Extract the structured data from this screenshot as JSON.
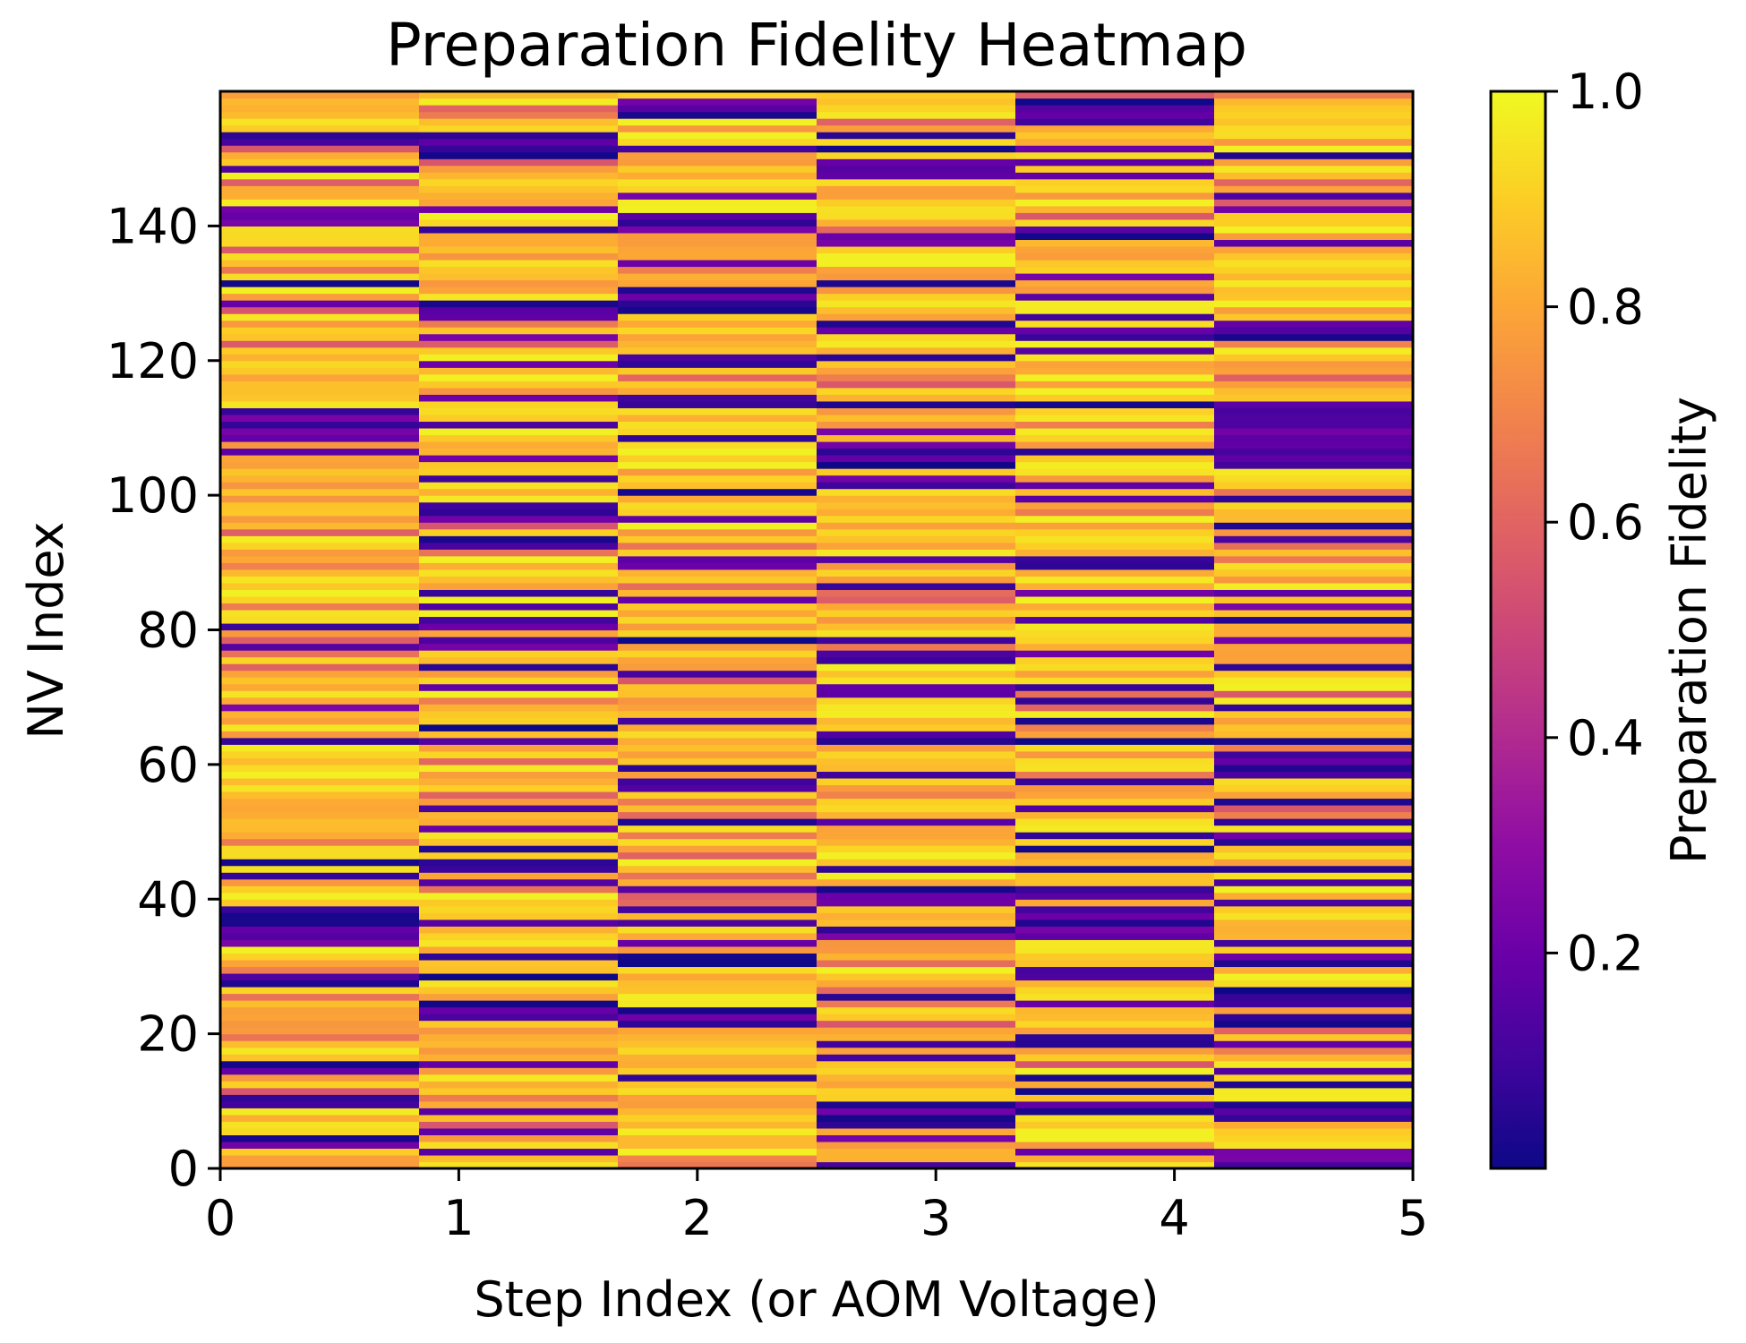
{
  "chart_data": {
    "type": "heatmap",
    "title": "Preparation Fidelity Heatmap",
    "xlabel": "Step Index (or AOM Voltage)",
    "ylabel": "NV Index",
    "colorbar_label": "Preparation Fidelity",
    "colormap": "plasma",
    "color_range": [
      0.0,
      1.0
    ],
    "xlim": [
      0,
      5
    ],
    "ylim": [
      0,
      160
    ],
    "x_ticks": [
      "0",
      "1",
      "2",
      "3",
      "4",
      "5"
    ],
    "y_ticks": [
      "0",
      "20",
      "40",
      "60",
      "80",
      "100",
      "120",
      "140"
    ],
    "colorbar_ticks": [
      "0.2",
      "0.4",
      "0.6",
      "0.8",
      "1.0"
    ],
    "n_steps": 6,
    "n_nv": 160,
    "low_fidelity_rows": [
      [
        3,
        4,
        9,
        10,
        14,
        15,
        27,
        28,
        33,
        34,
        35,
        36,
        37,
        38,
        43,
        45,
        63,
        68,
        77,
        80,
        106,
        108,
        109,
        110,
        111,
        112,
        128,
        131,
        140,
        141,
        142,
        148,
        152,
        153
      ],
      [
        2,
        5,
        8,
        15,
        22,
        23,
        24,
        28,
        31,
        36,
        42,
        44,
        45,
        47,
        50,
        53,
        63,
        65,
        71,
        74,
        77,
        78,
        80,
        81,
        83,
        85,
        92,
        93,
        96,
        97,
        98,
        102,
        105,
        110,
        114,
        119,
        123,
        126,
        127,
        128,
        139,
        142,
        150,
        151,
        152,
        153
      ],
      [
        13,
        21,
        22,
        23,
        30,
        31,
        33,
        36,
        38,
        41,
        51,
        56,
        57,
        59,
        66,
        73,
        78,
        84,
        89,
        90,
        96,
        100,
        108,
        113,
        114,
        119,
        120,
        127,
        128,
        129,
        130,
        134,
        139,
        140,
        141,
        144,
        151,
        156,
        157,
        158
      ],
      [
        0,
        4,
        6,
        7,
        8,
        9,
        16,
        18,
        25,
        34,
        35,
        39,
        40,
        41,
        44,
        51,
        58,
        63,
        64,
        70,
        71,
        75,
        76,
        78,
        86,
        90,
        101,
        102,
        104,
        105,
        106,
        107,
        109,
        113,
        120,
        124,
        125,
        131,
        137,
        138,
        147,
        148,
        149,
        151,
        153
      ],
      [
        2,
        8,
        9,
        11,
        13,
        18,
        19,
        24,
        28,
        29,
        34,
        35,
        36,
        37,
        38,
        40,
        41,
        44,
        47,
        49,
        53,
        57,
        63,
        66,
        69,
        71,
        76,
        81,
        85,
        89,
        90,
        99,
        101,
        106,
        113,
        121,
        123,
        124,
        126,
        129,
        132,
        138,
        139,
        147,
        149,
        151,
        155,
        156,
        157,
        158
      ],
      [
        0,
        1,
        2,
        7,
        8,
        9,
        12,
        14,
        18,
        21,
        22,
        24,
        25,
        26,
        30,
        31,
        33,
        39,
        42,
        44,
        48,
        49,
        51,
        54,
        58,
        59,
        60,
        61,
        63,
        68,
        74,
        78,
        81,
        83,
        85,
        93,
        95,
        99,
        104,
        105,
        106,
        107,
        108,
        109,
        110,
        111,
        112,
        113,
        123,
        124,
        125,
        137,
        142,
        144,
        150
      ]
    ],
    "typical_fidelity_range": [
      0.75,
      0.97
    ],
    "low_fidelity_range": [
      0.0,
      0.25
    ]
  }
}
